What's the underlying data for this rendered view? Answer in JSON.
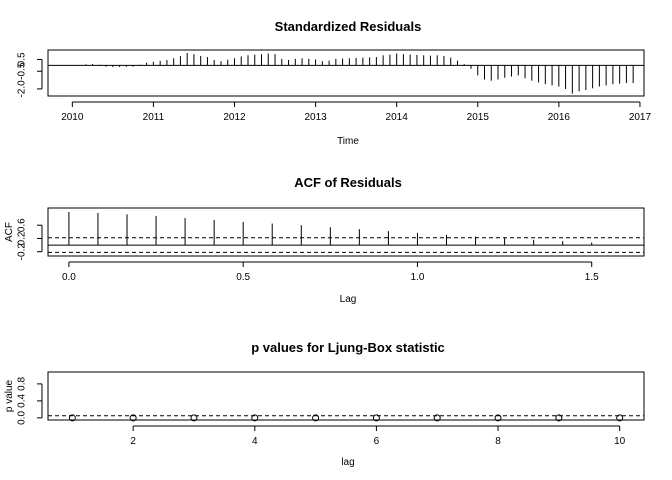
{
  "chart_data": [
    {
      "type": "bar",
      "title": "Standardized Residuals",
      "xlabel": "Time",
      "ylabel": "",
      "xlim": [
        2009.7,
        2017.05
      ],
      "ylim": [
        -2.6,
        1.3
      ],
      "x_ticks": [
        2010,
        2011,
        2012,
        2013,
        2014,
        2015,
        2016,
        2017
      ],
      "y_ticks": [
        -2.0,
        -0.5,
        0.5
      ],
      "y_tick_labels": [
        "-2.0",
        "-0.5",
        "0.5"
      ],
      "reference_line": 0,
      "x_start": 2010.083,
      "x_step": 0.0833333,
      "values": [
        -0.02,
        0.08,
        0.12,
        0.05,
        -0.12,
        -0.15,
        -0.14,
        -0.13,
        -0.12,
        0.05,
        0.22,
        0.3,
        0.38,
        0.45,
        0.6,
        0.78,
        1.05,
        0.95,
        0.8,
        0.7,
        0.45,
        0.35,
        0.48,
        0.6,
        0.75,
        0.85,
        0.9,
        0.95,
        1.0,
        0.95,
        0.55,
        0.45,
        0.55,
        0.6,
        0.55,
        0.5,
        0.35,
        0.4,
        0.55,
        0.58,
        0.6,
        0.62,
        0.65,
        0.68,
        0.7,
        0.85,
        0.9,
        1.0,
        0.95,
        0.92,
        0.88,
        0.85,
        0.82,
        0.85,
        0.8,
        0.65,
        0.4,
        0.1,
        -0.3,
        -0.85,
        -1.2,
        -1.3,
        -1.2,
        -1.05,
        -0.95,
        -0.85,
        -1.1,
        -1.3,
        -1.45,
        -1.6,
        -1.7,
        -1.8,
        -2.0,
        -2.4,
        -2.2,
        -2.1,
        -1.95,
        -1.8,
        -1.7,
        -1.6,
        -1.55,
        -1.5,
        -1.5
      ]
    },
    {
      "type": "bar",
      "title": "ACF of Residuals",
      "xlabel": "Lag",
      "ylabel": "ACF",
      "xlim": [
        -0.06,
        1.65
      ],
      "ylim": [
        -0.33,
        1.12
      ],
      "x_ticks": [
        0.0,
        0.5,
        1.0,
        1.5
      ],
      "x_tick_labels": [
        "0.0",
        "0.5",
        "1.0",
        "1.5"
      ],
      "y_ticks": [
        -0.2,
        0.2,
        0.6
      ],
      "y_tick_labels": [
        "-0.2",
        "0.2",
        "0.6"
      ],
      "lags": [
        0,
        0.0833,
        0.1667,
        0.25,
        0.3333,
        0.4167,
        0.5,
        0.5833,
        0.6667,
        0.75,
        0.8333,
        0.9167,
        1.0,
        1.0833,
        1.1667,
        1.25,
        1.3333,
        1.4167,
        1.5
      ],
      "values": [
        1.0,
        0.97,
        0.93,
        0.88,
        0.82,
        0.76,
        0.7,
        0.65,
        0.6,
        0.54,
        0.48,
        0.42,
        0.37,
        0.31,
        0.26,
        0.21,
        0.16,
        0.12,
        0.08
      ],
      "confidence_bounds": [
        0.22,
        -0.22
      ]
    },
    {
      "type": "scatter",
      "title": "p values for Ljung-Box statistic",
      "xlabel": "lag",
      "ylabel": "p value",
      "xlim": [
        0.6,
        10.4
      ],
      "ylim": [
        -0.05,
        1.08
      ],
      "x_ticks": [
        2,
        4,
        6,
        8,
        10
      ],
      "y_ticks": [
        0.0,
        0.4,
        0.8
      ],
      "y_tick_labels": [
        "0.0",
        "0.4",
        "0.8"
      ],
      "x": [
        1,
        2,
        3,
        4,
        5,
        6,
        7,
        8,
        9,
        10
      ],
      "values": [
        0,
        0,
        0,
        0,
        0,
        0,
        0,
        0,
        0,
        0
      ],
      "significance_line": 0.05
    }
  ]
}
